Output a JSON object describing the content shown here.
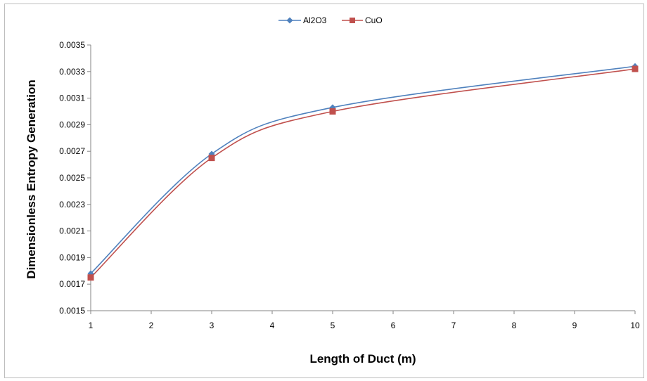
{
  "chart_data": {
    "type": "line",
    "x_type": "category",
    "categories": [
      "1",
      "3",
      "5",
      "10"
    ],
    "x_tick_labels": [
      "1",
      "2",
      "3",
      "4",
      "5",
      "6",
      "7",
      "8",
      "9",
      "10"
    ],
    "y_tick_labels": [
      "0.0015",
      "0.0017",
      "0.0019",
      "0.0021",
      "0.0023",
      "0.0025",
      "0.0027",
      "0.0029",
      "0.0031",
      "0.0033",
      "0.0035"
    ],
    "ylim": [
      0.0015,
      0.0035
    ],
    "xlabel": "Length of Duct (m)",
    "ylabel": "Dimensionless Entropy Generation",
    "title": "",
    "legend_position": "top",
    "grid": false,
    "smooth": true,
    "series": [
      {
        "name": "Al2O3",
        "x": [
          1,
          3,
          5,
          10
        ],
        "values": [
          0.00178,
          0.00268,
          0.00303,
          0.00334
        ],
        "color": "#4f81bd",
        "marker": "diamond"
      },
      {
        "name": "CuO",
        "x": [
          1,
          3,
          5,
          10
        ],
        "values": [
          0.00175,
          0.00265,
          0.003,
          0.00332
        ],
        "color": "#c0504d",
        "marker": "square"
      }
    ]
  }
}
